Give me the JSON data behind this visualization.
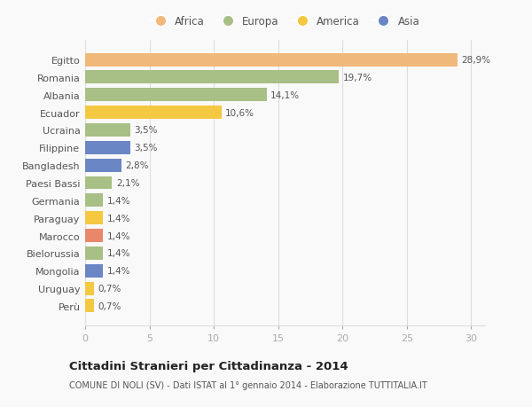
{
  "categories": [
    "Perù",
    "Uruguay",
    "Mongolia",
    "Bielorussia",
    "Marocco",
    "Paraguay",
    "Germania",
    "Paesi Bassi",
    "Bangladesh",
    "Filippine",
    "Ucraina",
    "Ecuador",
    "Albania",
    "Romania",
    "Egitto"
  ],
  "values": [
    0.7,
    0.7,
    1.4,
    1.4,
    1.4,
    1.4,
    1.4,
    2.1,
    2.8,
    3.5,
    3.5,
    10.6,
    14.1,
    19.7,
    28.9
  ],
  "colors": [
    "#f5c842",
    "#f5c842",
    "#6b86c4",
    "#a8bf85",
    "#e8876a",
    "#f5c842",
    "#a8bf85",
    "#a8bf85",
    "#6b86c4",
    "#6b86c4",
    "#a8bf85",
    "#f5c842",
    "#a8bf85",
    "#a8bf85",
    "#f0b87a"
  ],
  "labels": [
    "0,7%",
    "0,7%",
    "1,4%",
    "1,4%",
    "1,4%",
    "1,4%",
    "1,4%",
    "2,1%",
    "2,8%",
    "3,5%",
    "3,5%",
    "10,6%",
    "14,1%",
    "19,7%",
    "28,9%"
  ],
  "legend": [
    {
      "label": "Africa",
      "color": "#f0b87a"
    },
    {
      "label": "Europa",
      "color": "#a8bf85"
    },
    {
      "label": "America",
      "color": "#f5c842"
    },
    {
      "label": "Asia",
      "color": "#6b86c4"
    }
  ],
  "xlim": [
    0,
    31
  ],
  "xticks": [
    0,
    5,
    10,
    15,
    20,
    25,
    30
  ],
  "title": "Cittadini Stranieri per Cittadinanza - 2014",
  "subtitle": "COMUNE DI NOLI (SV) - Dati ISTAT al 1° gennaio 2014 - Elaborazione TUTTITALIA.IT",
  "bg_color": "#f9f9f9",
  "grid_color": "#dddddd",
  "bar_height": 0.75
}
